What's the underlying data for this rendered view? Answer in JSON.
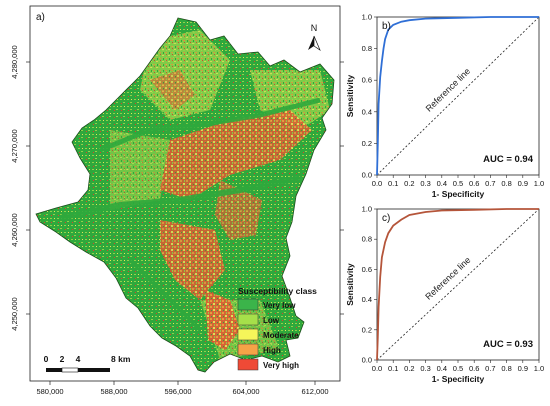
{
  "map_panel": {
    "panel_label": "a)",
    "north_label": "N",
    "x_ticks": [
      "580,000",
      "588,000",
      "596,000",
      "604,000",
      "612,000"
    ],
    "y_ticks": [
      "4,280,000",
      "4,270,000",
      "4,260,000",
      "4,250,000"
    ],
    "scale_bar": {
      "labels": [
        "0",
        "2",
        "4",
        "8 km"
      ]
    },
    "legend": {
      "title": "Susceptibility class",
      "items": [
        {
          "label": "Very low",
          "color": "#3bb44a"
        },
        {
          "label": "Low",
          "color": "#a6e04a"
        },
        {
          "label": "Moderate",
          "color": "#f5f55a"
        },
        {
          "label": "High",
          "color": "#f5a347"
        },
        {
          "label": "Very high",
          "color": "#ef4a36"
        }
      ]
    },
    "colors": {
      "base_green": "#2fa83c",
      "light_green": "#8fd14a",
      "yellow": "#e9e35a",
      "orange": "#f0973e",
      "red": "#e53b2d"
    }
  },
  "chart_data": [
    {
      "type": "line",
      "panel_label": "b)",
      "xlabel": "1- Specificity",
      "ylabel": "Sensitivity",
      "annotation": "AUC = 0.94",
      "reference_label": "Reference line",
      "xlim": [
        0,
        1
      ],
      "ylim": [
        0,
        1
      ],
      "x_ticks": [
        "0.0",
        "0.1",
        "0.2",
        "0.3",
        "0.4",
        "0.5",
        "0.6",
        "0.7",
        "0.8",
        "0.9",
        "1.0"
      ],
      "y_ticks": [
        "0.0",
        "0.2",
        "0.4",
        "0.6",
        "0.8",
        "1.0"
      ],
      "series": [
        {
          "color": "#2f6fd6",
          "x": [
            0.0,
            0.005,
            0.01,
            0.02,
            0.03,
            0.04,
            0.05,
            0.07,
            0.1,
            0.15,
            0.2,
            0.3,
            0.5,
            0.7,
            1.0
          ],
          "y": [
            0.0,
            0.2,
            0.45,
            0.62,
            0.72,
            0.8,
            0.86,
            0.92,
            0.95,
            0.97,
            0.98,
            0.99,
            0.995,
            1.0,
            1.0
          ]
        }
      ]
    },
    {
      "type": "line",
      "panel_label": "c)",
      "xlabel": "1- Specificity",
      "ylabel": "Sensitivity",
      "annotation": "AUC = 0.93",
      "reference_label": "Reference line",
      "xlim": [
        0,
        1
      ],
      "ylim": [
        0,
        1
      ],
      "x_ticks": [
        "0.0",
        "0.1",
        "0.2",
        "0.3",
        "0.4",
        "0.5",
        "0.6",
        "0.7",
        "0.8",
        "0.9",
        "1.0"
      ],
      "y_ticks": [
        "0.0",
        "0.2",
        "0.4",
        "0.6",
        "0.8",
        "1.0"
      ],
      "series": [
        {
          "color": "#b5553a",
          "x": [
            0.0,
            0.005,
            0.01,
            0.02,
            0.03,
            0.05,
            0.07,
            0.1,
            0.15,
            0.2,
            0.3,
            0.4,
            0.6,
            0.8,
            1.0
          ],
          "y": [
            0.0,
            0.15,
            0.35,
            0.55,
            0.68,
            0.78,
            0.84,
            0.89,
            0.93,
            0.96,
            0.98,
            0.99,
            0.995,
            1.0,
            1.0
          ]
        }
      ]
    }
  ]
}
